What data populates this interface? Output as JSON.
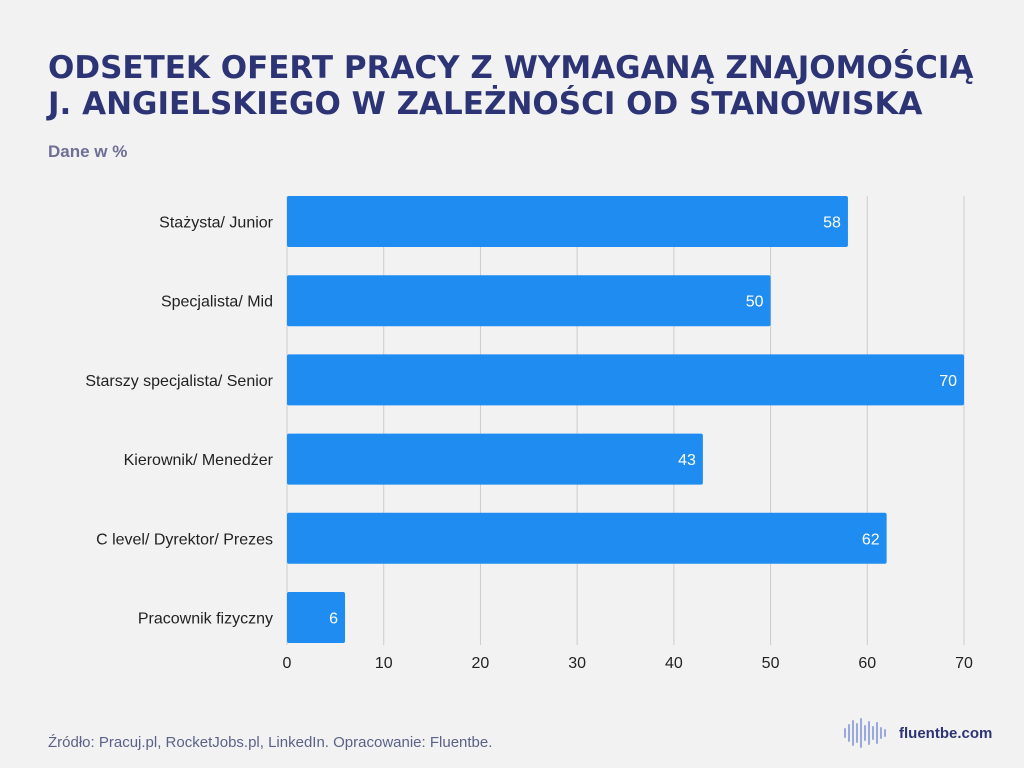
{
  "header": {
    "title_line1": "ODSETEK OFERT PRACY Z WYMAGANĄ ZNAJOMOŚCIĄ",
    "title_line2": "J. ANGIELSKIEGO W ZALEŻNOŚCI OD STANOWISKA",
    "subtitle": "Dane w %"
  },
  "footer": {
    "source": "Źródło: Pracuj.pl, RocketJobs.pl, LinkedIn. Opracowanie: Fluentbe.",
    "brand": "fluentbe.com"
  },
  "colors": {
    "bar": "#1e8cf0",
    "title": "#2d3476",
    "grid": "#cccccc",
    "background": "#f2f2f2"
  },
  "chart_data": {
    "type": "bar",
    "orientation": "horizontal",
    "categories": [
      "Stażysta/ Junior",
      "Specjalista/ Mid",
      "Starszy specjalista/ Senior",
      "Kierownik/ Menedżer",
      "C level/ Dyrektor/ Prezes",
      "Pracownik fizyczny"
    ],
    "values": [
      58,
      50,
      70,
      43,
      62,
      6
    ],
    "xlim": [
      0,
      70
    ],
    "xticks": [
      0,
      10,
      20,
      30,
      40,
      50,
      60,
      70
    ],
    "grid": true,
    "data_labels": true
  }
}
